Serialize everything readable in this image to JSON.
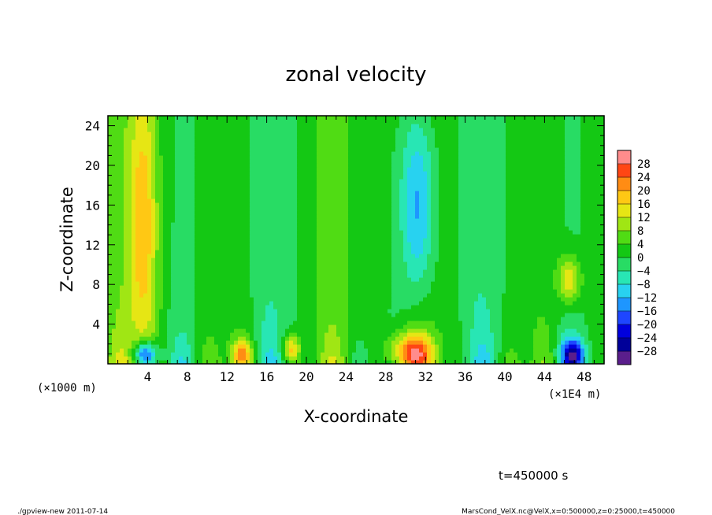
{
  "chart_data": {
    "type": "heatmap",
    "title": "zonal velocity",
    "xlabel": "X-coordinate",
    "ylabel": "Z-coordinate",
    "x_unit_left": "(×1000 m)",
    "x_unit_right": "(×1E4 m)",
    "xlim": [
      0,
      50
    ],
    "ylim": [
      0,
      25
    ],
    "x_ticks": [
      "4",
      "8",
      "12",
      "16",
      "20",
      "24",
      "28",
      "32",
      "36",
      "40",
      "44",
      "48"
    ],
    "y_ticks": [
      "4",
      "8",
      "12",
      "16",
      "20",
      "24"
    ],
    "colorbar": {
      "labels": [
        "28",
        "24",
        "20",
        "16",
        "12",
        "8",
        "4",
        "0",
        "−4",
        "−8",
        "−12",
        "−16",
        "−20",
        "−24",
        "−28"
      ],
      "range": [
        -30,
        30
      ],
      "colors": [
        "#5a1e8c",
        "#000099",
        "#0000dd",
        "#1e46ff",
        "#1e96ff",
        "#28d2f0",
        "#28e6b4",
        "#28dc64",
        "#14c814",
        "#50dc14",
        "#a0e614",
        "#e6e614",
        "#ffc814",
        "#ff8c14",
        "#ff4614",
        "#ff8c8c"
      ]
    },
    "features": [
      {
        "x": 3.6,
        "z": 14,
        "value": 14,
        "wx": 1.4,
        "wz": 14
      },
      {
        "x": 31.2,
        "z": 16,
        "value": -16,
        "wx": 1.8,
        "wz": 10
      },
      {
        "x": 30.5,
        "z": 1.2,
        "value": 22,
        "wx": 2.2,
        "wz": 2
      },
      {
        "x": 3.8,
        "z": 1,
        "value": -24,
        "wx": 1.2,
        "wz": 1.3
      },
      {
        "x": 46.5,
        "z": 8.5,
        "value": 14,
        "wx": 1.2,
        "wz": 2.5
      },
      {
        "x": 46.8,
        "z": 1,
        "value": -22,
        "wx": 1.2,
        "wz": 1.5
      },
      {
        "x": 13.5,
        "z": 1,
        "value": 16,
        "wx": 1.0,
        "wz": 1.5
      },
      {
        "x": 18.5,
        "z": 1.5,
        "value": 16,
        "wx": 0.9,
        "wz": 1.5
      }
    ]
  },
  "annotations": {
    "time": "t=450000 s",
    "footer_left": "./gpview-new   2011-07-14",
    "footer_right": "MarsCond_VelX.nc@VelX,x=0:500000,z=0:25000,t=450000"
  }
}
